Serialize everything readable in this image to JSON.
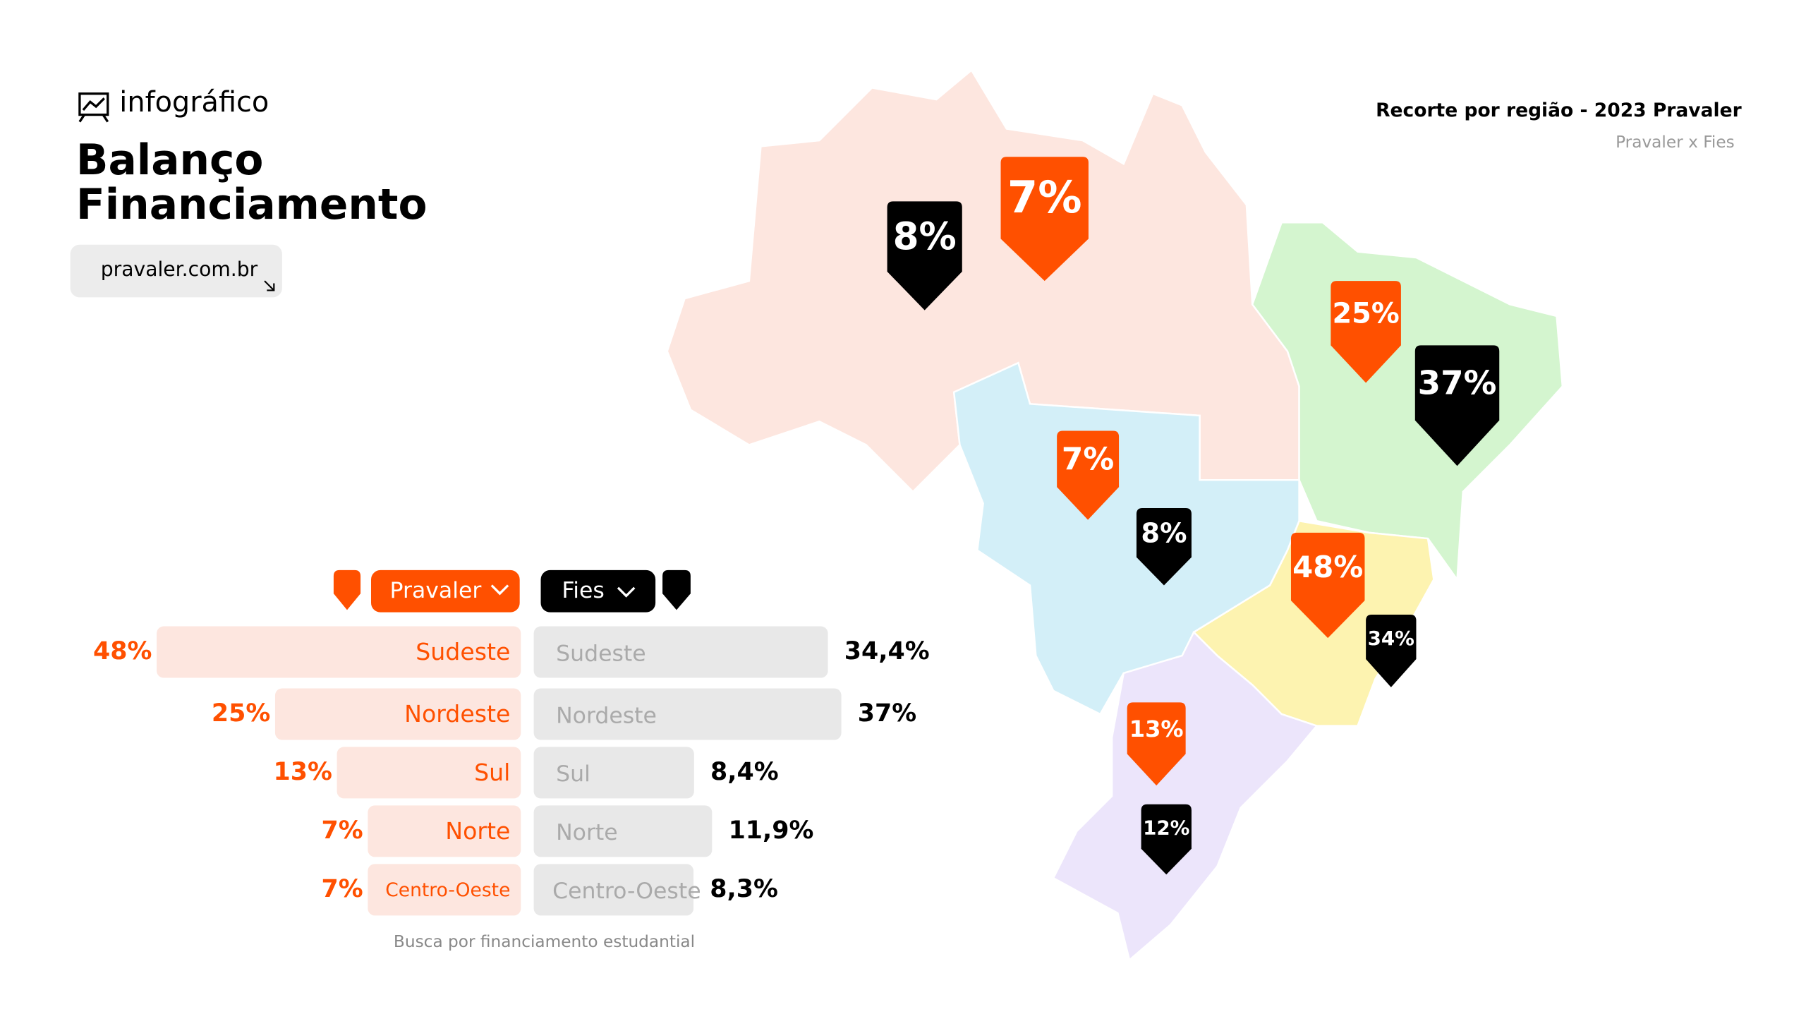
{
  "header": {
    "brand": "infográfico",
    "title": [
      "Balanço",
      "Financiamento"
    ],
    "link": "pravaler.com.br",
    "subtitle": "Recorte por região - 2023 Pravaler",
    "subheading": "Pravaler x Fies"
  },
  "chart_data": {
    "type": "bar",
    "categories": [
      "Sudeste",
      "Nordeste",
      "Sul",
      "Norte",
      "Centro-Oeste"
    ],
    "series": [
      {
        "name": "Pravaler",
        "color": "#ff5000",
        "values": [
          48,
          25,
          13,
          7,
          7
        ],
        "value_labels": [
          "48%",
          "25%",
          "13%",
          "7%",
          "7%"
        ]
      },
      {
        "name": "Fies",
        "color": "#000000",
        "values": [
          34.4,
          37,
          8.4,
          11.9,
          8.3
        ],
        "value_labels": [
          "34,4%",
          "37%",
          "8,4%",
          "11,9%",
          "8,3%"
        ]
      }
    ]
  },
  "footnote": "Busca por financiamento estudantial",
  "map": {
    "pravaler": [
      {
        "value": 7,
        "label": "7%"
      },
      {
        "value": 25,
        "label": "25%"
      },
      {
        "value": 7,
        "label": "7%"
      },
      {
        "value": 48,
        "label": "48%"
      },
      {
        "value": 13,
        "label": "13%"
      }
    ],
    "fies": [
      {
        "value": 8,
        "label": "8%"
      },
      {
        "value": 37,
        "label": "37%"
      },
      {
        "value": 8,
        "label": "8%"
      },
      {
        "value": 34,
        "label": "34%"
      },
      {
        "value": 12,
        "label": "12%"
      }
    ]
  }
}
